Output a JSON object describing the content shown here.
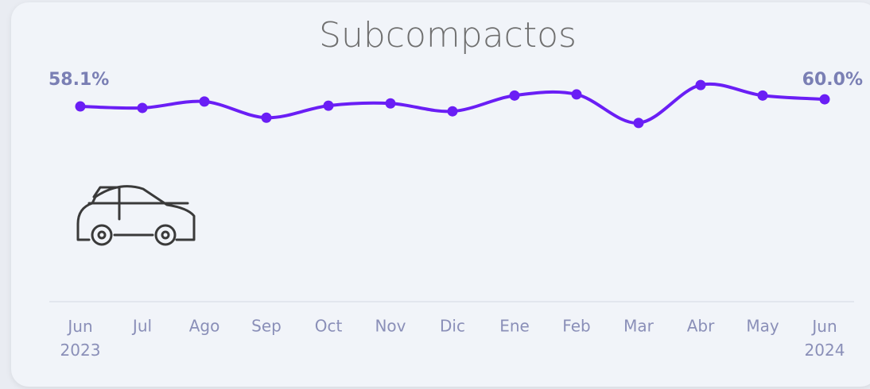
{
  "chart_data": {
    "type": "line",
    "title": "Subcompactos",
    "categories": [
      "Jun 2023",
      "Jul",
      "Ago",
      "Sep",
      "Oct",
      "Nov",
      "Dic",
      "Ene",
      "Feb",
      "Mar",
      "Abr",
      "May",
      "Jun 2024"
    ],
    "values": [
      58.1,
      57.7,
      59.4,
      55.1,
      58.3,
      58.9,
      56.8,
      61.0,
      61.3,
      53.7,
      63.8,
      61.0,
      60.0
    ],
    "value_labels": [
      "58.1%",
      null,
      null,
      null,
      null,
      null,
      null,
      null,
      null,
      null,
      null,
      null,
      "60.0%"
    ],
    "color": "#6a1ef5",
    "ylim": [
      50.5,
      65.3
    ]
  }
}
